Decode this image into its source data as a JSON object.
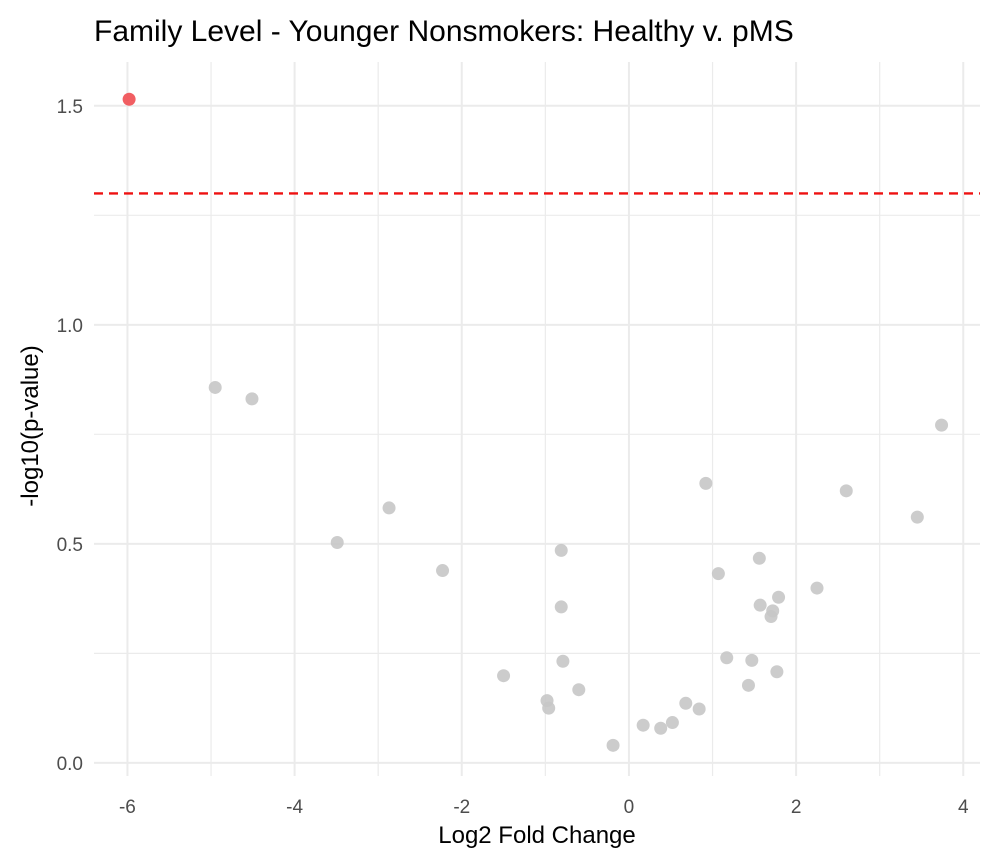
{
  "chart_data": {
    "type": "scatter",
    "title": "Family Level - Younger Nonsmokers: Healthy v. pMS",
    "xlabel": "Log2 Fold Change",
    "ylabel": "-log10(p-value)",
    "xlim": [
      -6.4,
      4.2
    ],
    "ylim": [
      -0.03,
      1.6
    ],
    "x_ticks": [
      -6,
      -4,
      -2,
      0,
      2,
      4
    ],
    "y_ticks": [
      0.0,
      0.5,
      1.0,
      1.5
    ],
    "x_tick_labels": [
      "-6",
      "-4",
      "-2",
      "0",
      "2",
      "4"
    ],
    "y_tick_labels": [
      "0.0",
      "0.5",
      "1.0",
      "1.5"
    ],
    "grid": true,
    "threshold_line": {
      "y": 1.3,
      "color": "#ee1111",
      "style": "dashed"
    },
    "colors": {
      "significant": "#f0555a",
      "not_significant": "#c7c7c7"
    },
    "points": [
      {
        "x": -5.98,
        "y": 1.515,
        "significant": true
      },
      {
        "x": -4.95,
        "y": 0.857,
        "significant": false
      },
      {
        "x": -4.51,
        "y": 0.831,
        "significant": false
      },
      {
        "x": -3.49,
        "y": 0.503,
        "significant": false
      },
      {
        "x": -2.87,
        "y": 0.582,
        "significant": false
      },
      {
        "x": -2.23,
        "y": 0.439,
        "significant": false
      },
      {
        "x": -1.5,
        "y": 0.199,
        "significant": false
      },
      {
        "x": -0.98,
        "y": 0.142,
        "significant": false
      },
      {
        "x": -0.96,
        "y": 0.125,
        "significant": false
      },
      {
        "x": -0.81,
        "y": 0.485,
        "significant": false
      },
      {
        "x": -0.81,
        "y": 0.356,
        "significant": false
      },
      {
        "x": -0.79,
        "y": 0.232,
        "significant": false
      },
      {
        "x": -0.6,
        "y": 0.167,
        "significant": false
      },
      {
        "x": -0.19,
        "y": 0.04,
        "significant": false
      },
      {
        "x": 0.17,
        "y": 0.086,
        "significant": false
      },
      {
        "x": 0.38,
        "y": 0.079,
        "significant": false
      },
      {
        "x": 0.52,
        "y": 0.092,
        "significant": false
      },
      {
        "x": 0.68,
        "y": 0.136,
        "significant": false
      },
      {
        "x": 0.84,
        "y": 0.123,
        "significant": false
      },
      {
        "x": 0.92,
        "y": 0.638,
        "significant": false
      },
      {
        "x": 1.07,
        "y": 0.432,
        "significant": false
      },
      {
        "x": 1.17,
        "y": 0.24,
        "significant": false
      },
      {
        "x": 1.43,
        "y": 0.177,
        "significant": false
      },
      {
        "x": 1.47,
        "y": 0.234,
        "significant": false
      },
      {
        "x": 1.56,
        "y": 0.467,
        "significant": false
      },
      {
        "x": 1.57,
        "y": 0.36,
        "significant": false
      },
      {
        "x": 1.7,
        "y": 0.334,
        "significant": false
      },
      {
        "x": 1.72,
        "y": 0.347,
        "significant": false
      },
      {
        "x": 1.77,
        "y": 0.208,
        "significant": false
      },
      {
        "x": 1.79,
        "y": 0.378,
        "significant": false
      },
      {
        "x": 2.25,
        "y": 0.399,
        "significant": false
      },
      {
        "x": 2.6,
        "y": 0.621,
        "significant": false
      },
      {
        "x": 3.45,
        "y": 0.561,
        "significant": false
      },
      {
        "x": 3.74,
        "y": 0.771,
        "significant": false
      }
    ]
  }
}
